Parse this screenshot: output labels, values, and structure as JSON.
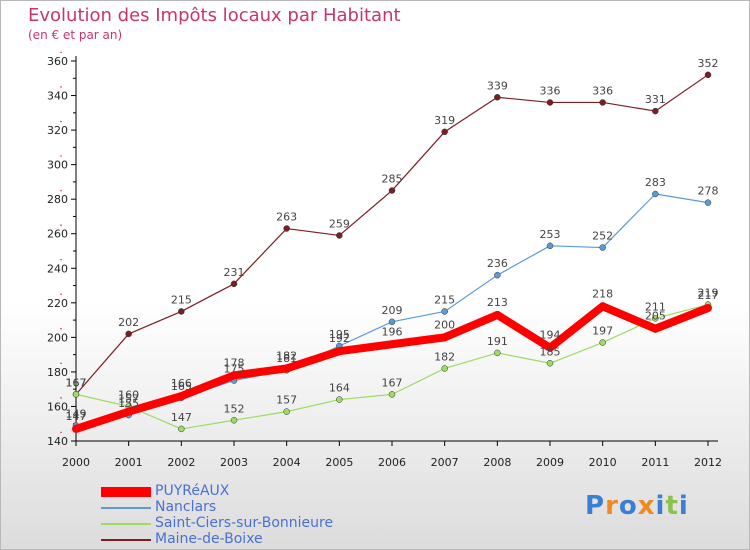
{
  "chart_data": {
    "type": "line",
    "title": "Evolution des Impôts locaux par Habitant",
    "subtitle": "(en € et par an)",
    "x": [
      "2000",
      "2001",
      "2002",
      "2003",
      "2004",
      "2005",
      "2006",
      "2007",
      "2008",
      "2009",
      "2010",
      "2011",
      "2012"
    ],
    "ylim": [
      140,
      360
    ],
    "yticks": [
      "140",
      "160",
      "180",
      "200",
      "220",
      "240",
      "260",
      "280",
      "300",
      "320",
      "340",
      "360"
    ],
    "series": [
      {
        "name": "Maine-de-Boixe",
        "color": "#7b1e22",
        "values": [
          167,
          202,
          215,
          231,
          263,
          259,
          285,
          319,
          339,
          336,
          336,
          331,
          352
        ],
        "labels": [
          "167",
          "202",
          "215",
          "231",
          "263",
          "259",
          "285",
          "319",
          "339",
          "336",
          "336",
          "331",
          "352"
        ]
      },
      {
        "name": "Nanclars",
        "color": "#5b9bd5",
        "values": [
          149,
          155,
          165,
          175,
          181,
          195,
          209,
          215,
          236,
          253,
          252,
          283,
          278
        ],
        "labels": [
          "149",
          "155",
          "165",
          "175",
          "181",
          "195",
          "209",
          "215",
          "236",
          "253",
          "252",
          "283",
          "278"
        ]
      },
      {
        "name": "Saint-Ciers-sur-Bonnieure",
        "color": "#9ddb63",
        "values": [
          167,
          160,
          147,
          152,
          157,
          164,
          167,
          182,
          191,
          185,
          197,
          211,
          219
        ],
        "labels": [
          "167",
          "160",
          "147",
          "152",
          "157",
          "164",
          "167",
          "182",
          "191",
          "185",
          "197",
          "211",
          "219"
        ]
      },
      {
        "name": "PUYRéAUX",
        "color": "#ff0000",
        "values": [
          147,
          157,
          166,
          178,
          182,
          192,
          196,
          200,
          213,
          194,
          218,
          205,
          217
        ],
        "labels": [
          "147",
          "157",
          "166",
          "178",
          "182",
          "192",
          "196",
          "200",
          "213",
          "194",
          "218",
          "205",
          "217"
        ]
      }
    ],
    "legend": [
      "PUYRéAUX",
      "Nanclars",
      "Saint-Ciers-sur-Bonnieure",
      "Maine-de-Boixe"
    ]
  },
  "logo": {
    "text": "Proxiti",
    "letters": [
      "P",
      "r",
      "o",
      "x",
      "i",
      "t",
      "i"
    ],
    "colors": [
      "#3a7fd4",
      "#f08a1c",
      "#3a7fd4",
      "#f08a1c",
      "#3a7fd4",
      "#8bc34a",
      "#3a7fd4"
    ]
  }
}
